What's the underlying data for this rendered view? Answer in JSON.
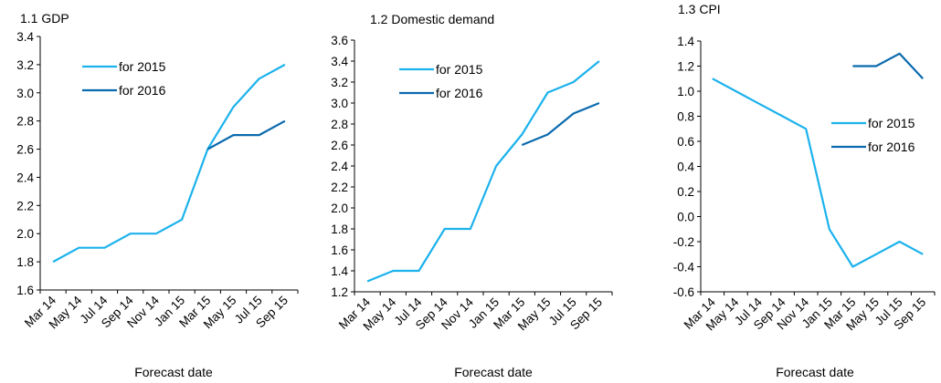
{
  "page": {
    "colors": {
      "for_2015": "#1BB2EC",
      "for_2016": "#0A6AAE",
      "axis": "#000000",
      "text": "#000000"
    }
  },
  "chart_data": [
    {
      "type": "line",
      "title": "1.1 GDP",
      "xlabel": "Forecast date",
      "ylabel": "",
      "ylim": [
        1.6,
        3.4
      ],
      "ytick_step": 0.2,
      "y_decimals": 1,
      "grid": false,
      "legend_position": "top-left",
      "categories": [
        "Mar 14",
        "May 14",
        "Jul 14",
        "Sep 14",
        "Nov 14",
        "Jan 15",
        "Mar 15",
        "May 15",
        "Jul 15",
        "Sep 15"
      ],
      "series": [
        {
          "name": "for 2015",
          "color": "#1BB2EC",
          "values": [
            1.8,
            1.9,
            1.9,
            2.0,
            2.0,
            2.1,
            2.6,
            2.9,
            3.1,
            3.2
          ]
        },
        {
          "name": "for 2016",
          "color": "#0A6AAE",
          "values": [
            null,
            null,
            null,
            null,
            null,
            null,
            2.6,
            2.7,
            2.7,
            2.8
          ]
        }
      ]
    },
    {
      "type": "line",
      "title": "1.2 Domestic demand",
      "xlabel": "Forecast date",
      "ylabel": "",
      "ylim": [
        1.2,
        3.6
      ],
      "ytick_step": 0.2,
      "y_decimals": 1,
      "grid": false,
      "legend_position": "top-left",
      "categories": [
        "Mar 14",
        "May 14",
        "Jul 14",
        "Sep 14",
        "Nov 14",
        "Jan 15",
        "Mar 15",
        "May 15",
        "Jul 15",
        "Sep 15"
      ],
      "series": [
        {
          "name": "for 2015",
          "color": "#1BB2EC",
          "values": [
            1.3,
            1.4,
            1.4,
            1.8,
            1.8,
            2.4,
            2.7,
            3.1,
            3.2,
            3.4
          ]
        },
        {
          "name": "for 2016",
          "color": "#0A6AAE",
          "values": [
            null,
            null,
            null,
            null,
            null,
            null,
            2.6,
            2.7,
            2.9,
            3.0
          ]
        }
      ]
    },
    {
      "type": "line",
      "title": "1.3 CPI",
      "xlabel": "Forecast date",
      "ylabel": "",
      "ylim": [
        -0.6,
        1.4
      ],
      "ytick_step": 0.2,
      "y_decimals": 1,
      "grid": false,
      "legend_position": "right",
      "categories": [
        "Mar 14",
        "May 14",
        "Jul 14",
        "Sep 14",
        "Nov 14",
        "Jan 15",
        "Mar 15",
        "May 15",
        "Jul 15",
        "Sep 15"
      ],
      "series": [
        {
          "name": "for 2015",
          "color": "#1BB2EC",
          "values": [
            1.1,
            1.0,
            0.9,
            0.8,
            0.7,
            -0.1,
            -0.4,
            -0.3,
            -0.2,
            -0.3
          ]
        },
        {
          "name": "for 2016",
          "color": "#0A6AAE",
          "values": [
            null,
            null,
            null,
            null,
            null,
            null,
            1.2,
            1.2,
            1.3,
            1.1
          ]
        }
      ]
    }
  ]
}
